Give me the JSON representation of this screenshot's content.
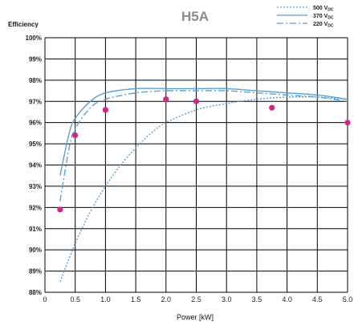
{
  "chart_data": {
    "type": "line",
    "title": "H5A",
    "ylabel": "Efficiency",
    "xlabel": "Power [kW]",
    "xlim": [
      0,
      5.0
    ],
    "ylim": [
      88,
      100
    ],
    "x_ticks": [
      "0",
      "0.5",
      "1.0",
      "1.5",
      "2.0",
      "2.5",
      "3.0",
      "3.5",
      "4.0",
      "4.5",
      "5.0"
    ],
    "y_ticks": [
      "88%",
      "89%",
      "90%",
      "91%",
      "92%",
      "93%",
      "94%",
      "95%",
      "96%",
      "97%",
      "98%",
      "99%",
      "100%"
    ],
    "grid": true,
    "legend_position": "top-right",
    "series": [
      {
        "name": "500 V",
        "name_sub": "DC",
        "style": "dotted",
        "color": "#5a9fd4",
        "x": [
          0.25,
          0.5,
          0.75,
          1.0,
          1.25,
          1.5,
          1.75,
          2.0,
          2.5,
          3.0,
          3.5,
          4.0,
          4.5,
          5.0
        ],
        "y": [
          88.5,
          90.3,
          91.8,
          93.0,
          94.0,
          94.8,
          95.5,
          96.0,
          96.6,
          96.9,
          97.1,
          97.2,
          97.2,
          97.1
        ]
      },
      {
        "name": "370 V",
        "name_sub": "DC",
        "style": "solid",
        "color": "#5a9fd4",
        "x": [
          0.25,
          0.4,
          0.5,
          0.75,
          1.0,
          1.5,
          2.0,
          2.5,
          3.0,
          3.5,
          4.0,
          4.5,
          5.0
        ],
        "y": [
          93.5,
          95.5,
          96.2,
          97.0,
          97.4,
          97.6,
          97.6,
          97.6,
          97.6,
          97.5,
          97.4,
          97.3,
          97.1
        ]
      },
      {
        "name": "220 V",
        "name_sub": "DC",
        "style": "dashdot",
        "color": "#5a9fd4",
        "x": [
          0.25,
          0.4,
          0.5,
          0.75,
          1.0,
          1.5,
          2.0,
          2.5,
          3.0,
          3.5,
          4.0,
          4.5,
          5.0
        ],
        "y": [
          92.3,
          94.8,
          95.7,
          96.7,
          97.1,
          97.4,
          97.5,
          97.5,
          97.5,
          97.4,
          97.3,
          97.2,
          97.0
        ]
      }
    ],
    "points": {
      "color": "#d6248c",
      "x": [
        0.25,
        0.5,
        1.0,
        2.0,
        2.5,
        3.75,
        5.0
      ],
      "y": [
        91.9,
        95.4,
        96.6,
        97.1,
        97.0,
        96.7,
        96.0
      ]
    }
  }
}
